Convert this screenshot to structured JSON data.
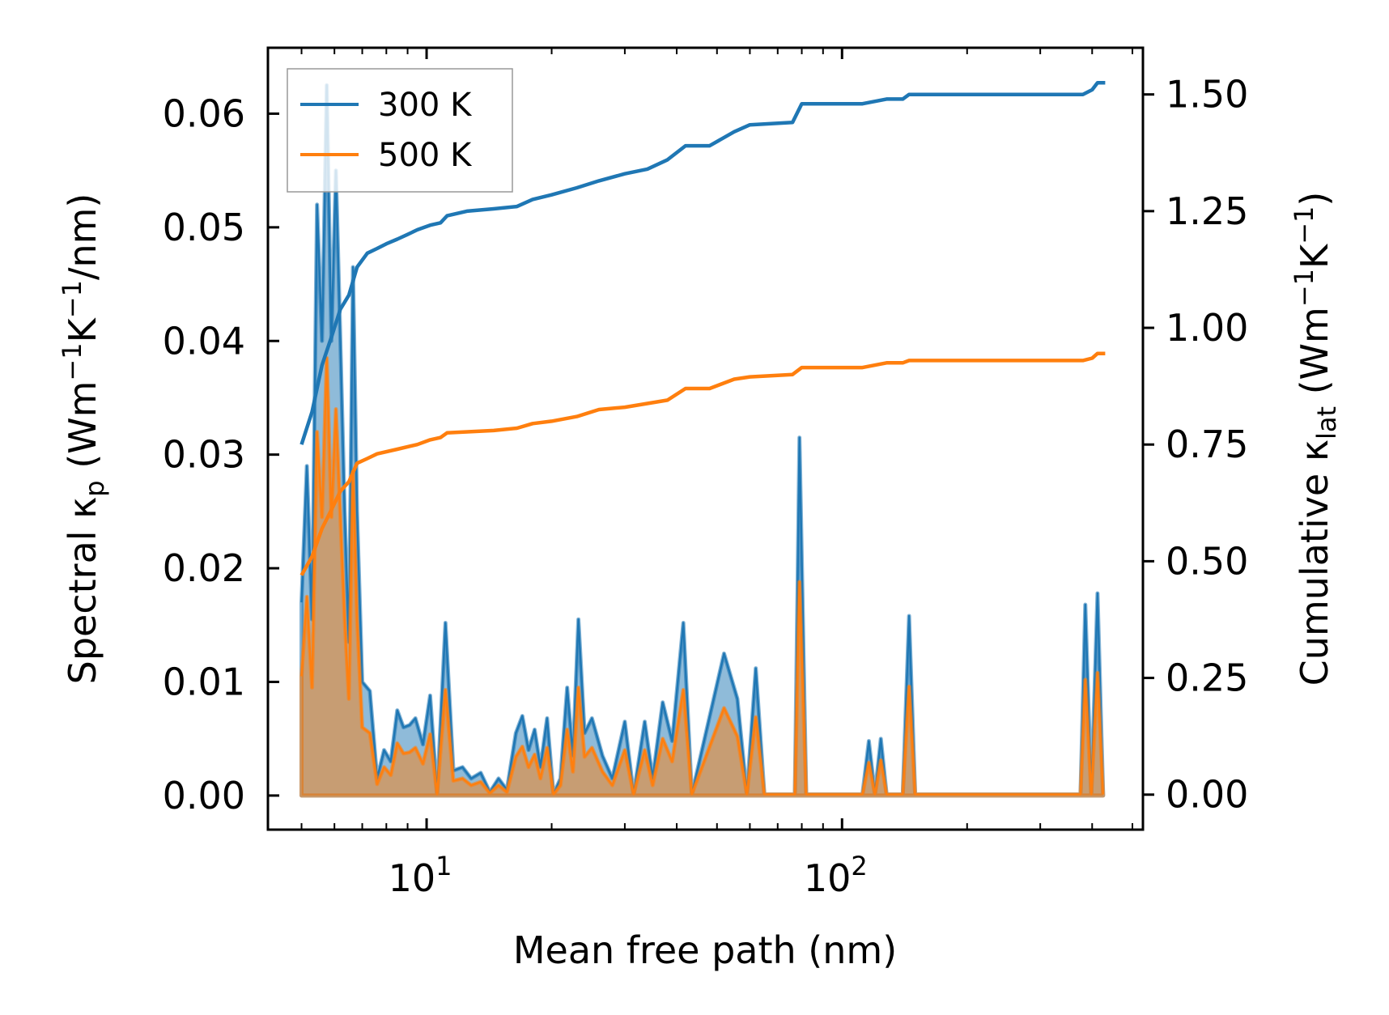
{
  "chart_data": {
    "type": "line",
    "x_scale": "log",
    "xlabel": "Mean free path (nm)",
    "ylabel_left": "Spectral κp (Wm−1K−1/nm)",
    "ylabel_left_parts": {
      "a": "Spectral κ",
      "b": "p",
      "c": " (Wm",
      "d": "−1",
      "e": "K",
      "f": "−1",
      "g": "/nm)"
    },
    "ylabel_right": "Cumulative κlat (Wm−1K−1)",
    "ylabel_right_parts": {
      "a": "Cumulative κ",
      "b": "lat",
      "c": " (Wm",
      "d": "−1",
      "e": "K",
      "f": "−1",
      "g": ")"
    },
    "xlim": [
      4.15,
      530
    ],
    "ylim_left": [
      -0.003,
      0.0658
    ],
    "ylim_right": [
      -0.075,
      1.6
    ],
    "x_ticks_major": [
      {
        "value": 10,
        "base": "10",
        "exp": "1"
      },
      {
        "value": 100,
        "base": "10",
        "exp": "2"
      }
    ],
    "y_ticks_left": [
      {
        "value": 0.0,
        "label": "0.00"
      },
      {
        "value": 0.01,
        "label": "0.01"
      },
      {
        "value": 0.02,
        "label": "0.02"
      },
      {
        "value": 0.03,
        "label": "0.03"
      },
      {
        "value": 0.04,
        "label": "0.04"
      },
      {
        "value": 0.05,
        "label": "0.05"
      },
      {
        "value": 0.06,
        "label": "0.06"
      }
    ],
    "y_ticks_right": [
      {
        "value": 0.0,
        "label": "0.00"
      },
      {
        "value": 0.25,
        "label": "0.25"
      },
      {
        "value": 0.5,
        "label": "0.50"
      },
      {
        "value": 0.75,
        "label": "0.75"
      },
      {
        "value": 1.0,
        "label": "1.00"
      },
      {
        "value": 1.25,
        "label": "1.25"
      },
      {
        "value": 1.5,
        "label": "1.50"
      }
    ],
    "legend": {
      "location": "upper-left",
      "entries": [
        {
          "label": "300 K",
          "color": "#1f77b4"
        },
        {
          "label": "500 K",
          "color": "#ff7f0e"
        }
      ]
    },
    "series": [
      {
        "name": "300 K",
        "color": "#1f77b4",
        "spectral": [
          [
            5,
            0.017
          ],
          [
            5.15,
            0.029
          ],
          [
            5.3,
            0.0155
          ],
          [
            5.45,
            0.052
          ],
          [
            5.6,
            0.04
          ],
          [
            5.75,
            0.0625
          ],
          [
            5.9,
            0.04
          ],
          [
            6.05,
            0.055
          ],
          [
            6.2,
            0.04
          ],
          [
            6.35,
            0.025
          ],
          [
            6.5,
            0.0135
          ],
          [
            6.65,
            0.0465
          ],
          [
            6.8,
            0.025
          ],
          [
            7.0,
            0.01
          ],
          [
            7.3,
            0.0092
          ],
          [
            7.6,
            0.0015
          ],
          [
            7.9,
            0.004
          ],
          [
            8.2,
            0.003
          ],
          [
            8.5,
            0.0075
          ],
          [
            8.8,
            0.006
          ],
          [
            9.1,
            0.0062
          ],
          [
            9.4,
            0.0068
          ],
          [
            9.8,
            0.0045
          ],
          [
            10.2,
            0.0088
          ],
          [
            10.6,
            0.0001
          ],
          [
            11.1,
            0.0152
          ],
          [
            11.6,
            0.0022
          ],
          [
            12.2,
            0.0025
          ],
          [
            12.8,
            0.0015
          ],
          [
            13.5,
            0.002
          ],
          [
            14.2,
            0.0003
          ],
          [
            14.9,
            0.0015
          ],
          [
            15.6,
            0.0005
          ],
          [
            16.4,
            0.0055
          ],
          [
            17.0,
            0.007
          ],
          [
            17.6,
            0.004
          ],
          [
            18.2,
            0.0058
          ],
          [
            18.8,
            0.0025
          ],
          [
            19.5,
            0.0068
          ],
          [
            20.2,
            0.0001
          ],
          [
            21.0,
            0.0015
          ],
          [
            21.8,
            0.0095
          ],
          [
            22.5,
            0.0035
          ],
          [
            23.2,
            0.0155
          ],
          [
            24.0,
            0.0055
          ],
          [
            25.0,
            0.0068
          ],
          [
            26.5,
            0.0035
          ],
          [
            28.0,
            0.0015
          ],
          [
            30.0,
            0.0065
          ],
          [
            31.5,
            0.0001
          ],
          [
            33.5,
            0.0065
          ],
          [
            35.0,
            0.0015
          ],
          [
            37.0,
            0.0082
          ],
          [
            39.0,
            0.0048
          ],
          [
            41.5,
            0.0152
          ],
          [
            43.5,
            0.0001
          ],
          [
            52.0,
            0.0125
          ],
          [
            56.0,
            0.0085
          ],
          [
            59.0,
            0.0001
          ],
          [
            62.0,
            0.0112
          ],
          [
            65.0,
            0.0001
          ],
          [
            77.0,
            0.0001
          ],
          [
            79.0,
            0.0315
          ],
          [
            82.0,
            0.0001
          ],
          [
            112.0,
            0.0001
          ],
          [
            116.0,
            0.0048
          ],
          [
            120.0,
            0.0001
          ],
          [
            124.0,
            0.005
          ],
          [
            128.0,
            0.0001
          ],
          [
            140.0,
            0.0001
          ],
          [
            145.0,
            0.0158
          ],
          [
            150.0,
            0.0001
          ],
          [
            375.0,
            0.0001
          ],
          [
            385.0,
            0.0168
          ],
          [
            398.0,
            0.0001
          ],
          [
            412.0,
            0.0178
          ],
          [
            425.0,
            0.0001
          ]
        ],
        "cumulative": [
          [
            5,
            0.75
          ],
          [
            5.3,
            0.82
          ],
          [
            5.6,
            0.92
          ],
          [
            5.9,
            0.98
          ],
          [
            6.2,
            1.04
          ],
          [
            6.5,
            1.07
          ],
          [
            6.8,
            1.13
          ],
          [
            7.2,
            1.16
          ],
          [
            7.6,
            1.17
          ],
          [
            8.0,
            1.18
          ],
          [
            8.5,
            1.19
          ],
          [
            9.0,
            1.2
          ],
          [
            9.5,
            1.21
          ],
          [
            10.2,
            1.22
          ],
          [
            10.8,
            1.225
          ],
          [
            11.2,
            1.24
          ],
          [
            12.5,
            1.25
          ],
          [
            14.5,
            1.255
          ],
          [
            16.5,
            1.26
          ],
          [
            18.0,
            1.275
          ],
          [
            20.0,
            1.285
          ],
          [
            23.0,
            1.3
          ],
          [
            26.0,
            1.315
          ],
          [
            30.0,
            1.33
          ],
          [
            34.0,
            1.34
          ],
          [
            38.0,
            1.36
          ],
          [
            42.0,
            1.39
          ],
          [
            48.0,
            1.39
          ],
          [
            55.0,
            1.42
          ],
          [
            60.0,
            1.435
          ],
          [
            76.0,
            1.44
          ],
          [
            80.0,
            1.48
          ],
          [
            112.0,
            1.48
          ],
          [
            128.0,
            1.49
          ],
          [
            140.0,
            1.49
          ],
          [
            145.0,
            1.5
          ],
          [
            380.0,
            1.5
          ],
          [
            400.0,
            1.51
          ],
          [
            412.0,
            1.525
          ],
          [
            430.0,
            1.525
          ]
        ]
      },
      {
        "name": "500 K",
        "color": "#ff7f0e",
        "spectral": [
          [
            5,
            0.0105
          ],
          [
            5.15,
            0.0175
          ],
          [
            5.3,
            0.0095
          ],
          [
            5.45,
            0.032
          ],
          [
            5.6,
            0.0245
          ],
          [
            5.75,
            0.0385
          ],
          [
            5.9,
            0.0245
          ],
          [
            6.05,
            0.034
          ],
          [
            6.2,
            0.0245
          ],
          [
            6.35,
            0.0155
          ],
          [
            6.5,
            0.0085
          ],
          [
            6.65,
            0.0285
          ],
          [
            6.8,
            0.0155
          ],
          [
            7.0,
            0.006
          ],
          [
            7.3,
            0.0055
          ],
          [
            7.6,
            0.001
          ],
          [
            7.9,
            0.0025
          ],
          [
            8.2,
            0.0018
          ],
          [
            8.5,
            0.0046
          ],
          [
            8.8,
            0.0037
          ],
          [
            9.1,
            0.0038
          ],
          [
            9.4,
            0.0042
          ],
          [
            9.8,
            0.0028
          ],
          [
            10.2,
            0.0054
          ],
          [
            10.6,
            0.0001
          ],
          [
            11.1,
            0.0093
          ],
          [
            11.6,
            0.0013
          ],
          [
            12.2,
            0.0015
          ],
          [
            12.8,
            0.0009
          ],
          [
            13.5,
            0.0012
          ],
          [
            14.2,
            0.0002
          ],
          [
            14.9,
            0.0009
          ],
          [
            15.6,
            0.0003
          ],
          [
            16.4,
            0.0034
          ],
          [
            17.0,
            0.0043
          ],
          [
            17.6,
            0.0025
          ],
          [
            18.2,
            0.0036
          ],
          [
            18.8,
            0.0015
          ],
          [
            19.5,
            0.0042
          ],
          [
            20.2,
            0.0001
          ],
          [
            21.0,
            0.0009
          ],
          [
            21.8,
            0.0058
          ],
          [
            22.5,
            0.0021
          ],
          [
            23.2,
            0.0095
          ],
          [
            24.0,
            0.0034
          ],
          [
            25.0,
            0.0042
          ],
          [
            26.5,
            0.0021
          ],
          [
            28.0,
            0.0009
          ],
          [
            30.0,
            0.004
          ],
          [
            31.5,
            0.0001
          ],
          [
            33.5,
            0.004
          ],
          [
            35.0,
            0.0009
          ],
          [
            37.0,
            0.005
          ],
          [
            39.0,
            0.003
          ],
          [
            41.5,
            0.0093
          ],
          [
            43.5,
            0.0001
          ],
          [
            52.0,
            0.0077
          ],
          [
            56.0,
            0.0052
          ],
          [
            59.0,
            0.0001
          ],
          [
            62.0,
            0.0069
          ],
          [
            65.0,
            0.0001
          ],
          [
            77.0,
            0.0001
          ],
          [
            79.0,
            0.0188
          ],
          [
            82.0,
            0.0001
          ],
          [
            112.0,
            0.0001
          ],
          [
            116.0,
            0.0029
          ],
          [
            120.0,
            0.0001
          ],
          [
            124.0,
            0.0031
          ],
          [
            128.0,
            0.0001
          ],
          [
            140.0,
            0.0001
          ],
          [
            145.0,
            0.0096
          ],
          [
            150.0,
            0.0001
          ],
          [
            375.0,
            0.0001
          ],
          [
            385.0,
            0.0102
          ],
          [
            398.0,
            0.0001
          ],
          [
            412.0,
            0.0108
          ],
          [
            425.0,
            0.0001
          ]
        ],
        "cumulative": [
          [
            5,
            0.47
          ],
          [
            5.3,
            0.51
          ],
          [
            5.6,
            0.57
          ],
          [
            5.9,
            0.61
          ],
          [
            6.2,
            0.65
          ],
          [
            6.5,
            0.67
          ],
          [
            6.8,
            0.71
          ],
          [
            7.2,
            0.72
          ],
          [
            7.6,
            0.73
          ],
          [
            8.5,
            0.74
          ],
          [
            9.5,
            0.75
          ],
          [
            10.2,
            0.76
          ],
          [
            10.8,
            0.765
          ],
          [
            11.2,
            0.775
          ],
          [
            14.5,
            0.78
          ],
          [
            16.5,
            0.785
          ],
          [
            18.0,
            0.795
          ],
          [
            20.0,
            0.8
          ],
          [
            23.0,
            0.81
          ],
          [
            26.0,
            0.825
          ],
          [
            30.0,
            0.83
          ],
          [
            38.0,
            0.845
          ],
          [
            42.0,
            0.87
          ],
          [
            48.0,
            0.87
          ],
          [
            55.0,
            0.89
          ],
          [
            60.0,
            0.895
          ],
          [
            76.0,
            0.9
          ],
          [
            80.0,
            0.915
          ],
          [
            112.0,
            0.915
          ],
          [
            128.0,
            0.925
          ],
          [
            140.0,
            0.925
          ],
          [
            145.0,
            0.93
          ],
          [
            380.0,
            0.93
          ],
          [
            400.0,
            0.935
          ],
          [
            412.0,
            0.945
          ],
          [
            430.0,
            0.945
          ]
        ]
      }
    ]
  }
}
